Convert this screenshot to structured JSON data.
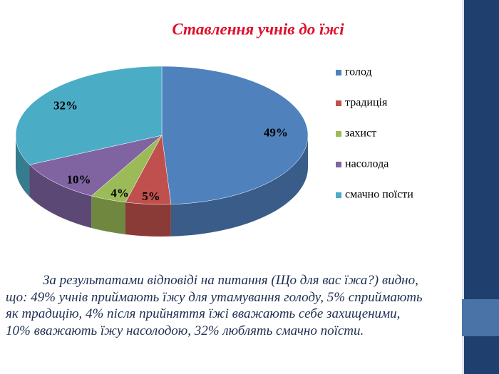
{
  "chart_data": {
    "type": "pie3d",
    "title": "Ставлення учнів до їжі",
    "categories": [
      "голод",
      "традиція",
      "захист",
      "насолода",
      "смачно поїсти"
    ],
    "values": [
      49,
      5,
      4,
      10,
      32
    ],
    "value_labels": [
      "49%",
      "5%",
      "4%",
      "10%",
      "32%"
    ],
    "colors": [
      "#4f81bd",
      "#c0504d",
      "#9bbb59",
      "#8064a2",
      "#4bacc6"
    ],
    "legend": "right"
  },
  "body_text": "За результатами відповіді на питання (Що для вас їжа?) видно, що: 49% учнів приймають їжу для утамування голоду, 5% сприймають як традицію, 4% після прийняття їжі вважають себе захищеними, 10% вважають їжу насолодою, 32% люблять смачно поїсти."
}
